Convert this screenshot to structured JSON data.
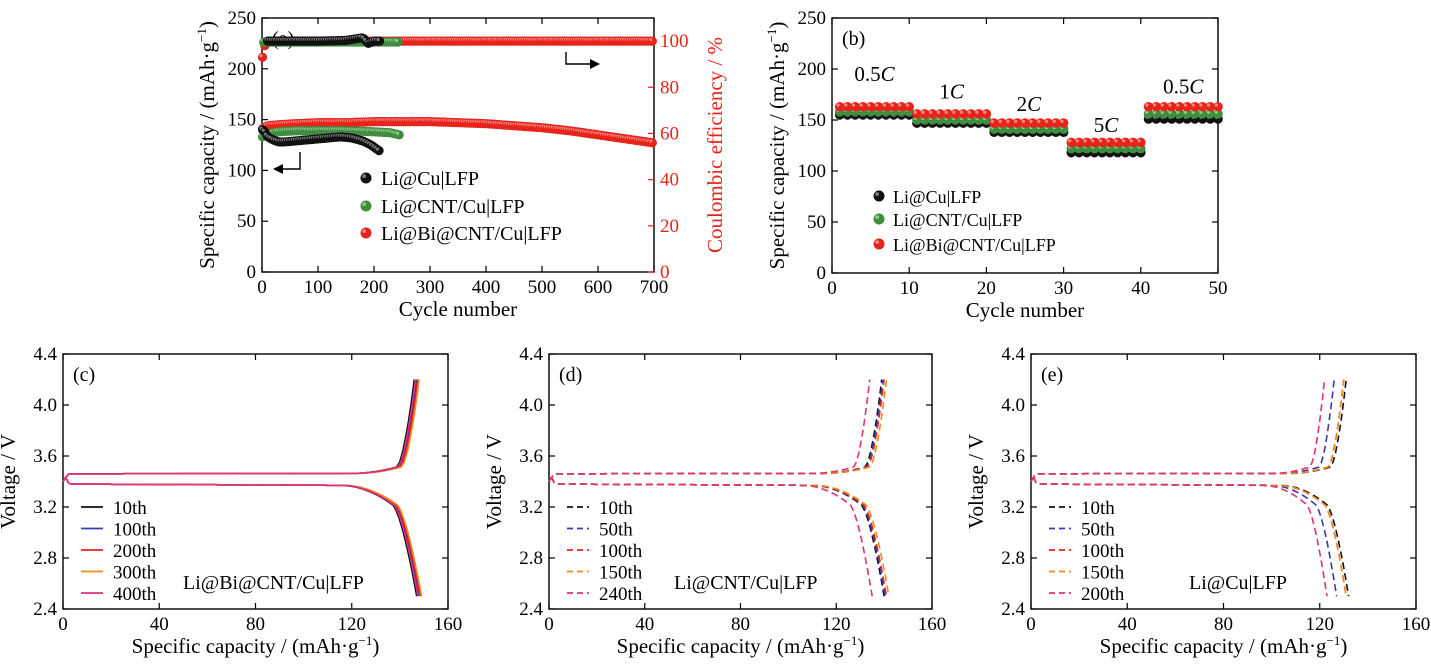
{
  "colors": {
    "black": "#111111",
    "blue": "#3a3ab4",
    "red": "#e8231a",
    "orange": "#f08a1e",
    "magenta": "#e0307a",
    "green": "#3e8e3e",
    "ce_red": "#e8231a",
    "dark_green": "#2e6f2e"
  },
  "chart_data": [
    {
      "id": "a",
      "type": "scatter",
      "panel_label": "(a)",
      "xlabel": "Cycle number",
      "ylabel": "Specific capacity / (mAh·g⁻¹)",
      "y2label": "Coulombic efficiency / %",
      "xlim": [
        0,
        700
      ],
      "ylim": [
        0,
        250
      ],
      "y2lim": [
        0,
        110
      ],
      "xticks": [
        "0",
        "100",
        "200",
        "300",
        "400",
        "500",
        "600",
        "700"
      ],
      "yticks": [
        "0",
        "50",
        "100",
        "150",
        "200",
        "250"
      ],
      "y2ticks": [
        "0",
        "20",
        "40",
        "60",
        "80",
        "100"
      ],
      "legend": [
        "Li@Cu|LFP",
        "Li@CNT/Cu|LFP",
        "Li@Bi@CNT/Cu|LFP"
      ],
      "series": [
        {
          "name": "Li@Cu|LFP",
          "color": "black",
          "axis": "left",
          "points": [
            [
              1,
              140
            ],
            [
              5,
              138
            ],
            [
              10,
              133
            ],
            [
              20,
              130
            ],
            [
              30,
              128
            ],
            [
              40,
              128
            ],
            [
              60,
              129
            ],
            [
              80,
              130
            ],
            [
              100,
              131
            ],
            [
              120,
              132
            ],
            [
              140,
              133
            ],
            [
              160,
              132
            ],
            [
              180,
              129
            ],
            [
              195,
              125
            ],
            [
              205,
              121
            ],
            [
              210,
              119
            ]
          ]
        },
        {
          "name": "Li@CNT/Cu|LFP",
          "color": "green",
          "axis": "left",
          "points": [
            [
              1,
              133
            ],
            [
              10,
              136
            ],
            [
              30,
              138
            ],
            [
              60,
              139
            ],
            [
              100,
              139
            ],
            [
              150,
              139
            ],
            [
              200,
              138
            ],
            [
              230,
              137
            ],
            [
              245,
              135
            ]
          ]
        },
        {
          "name": "Li@Bi@CNT/Cu|LFP",
          "color": "red",
          "axis": "left",
          "points": [
            [
              1,
              141
            ],
            [
              10,
              144
            ],
            [
              30,
              145
            ],
            [
              60,
              146
            ],
            [
              100,
              147
            ],
            [
              150,
              147
            ],
            [
              200,
              148
            ],
            [
              250,
              148
            ],
            [
              300,
              148
            ],
            [
              350,
              147
            ],
            [
              400,
              146
            ],
            [
              450,
              144
            ],
            [
              500,
              142
            ],
            [
              550,
              139
            ],
            [
              600,
              135
            ],
            [
              650,
              131
            ],
            [
              700,
              127
            ]
          ]
        },
        {
          "name": "Li@Cu|LFP CE",
          "color": "black",
          "axis": "right",
          "points": [
            [
              10,
              100
            ],
            [
              50,
              100
            ],
            [
              100,
              100
            ],
            [
              150,
              100.3
            ],
            [
              180,
              101.5
            ],
            [
              190,
              99
            ],
            [
              200,
              100
            ],
            [
              210,
              100
            ]
          ]
        },
        {
          "name": "Li@CNT/Cu|LFP CE",
          "color": "green",
          "axis": "right",
          "points": [
            [
              3,
              99.5
            ],
            [
              50,
              99.6
            ],
            [
              100,
              99.6
            ],
            [
              150,
              99.6
            ],
            [
              200,
              99.6
            ],
            [
              245,
              99.6
            ]
          ]
        },
        {
          "name": "Li@Bi@CNT/Cu|LFP CE",
          "color": "ce_red",
          "axis": "right",
          "points": [
            [
              1,
              93
            ],
            [
              5,
              98
            ],
            [
              10,
              100
            ],
            [
              100,
              100
            ],
            [
              200,
              100
            ],
            [
              300,
              100
            ],
            [
              400,
              100
            ],
            [
              500,
              100
            ],
            [
              600,
              100
            ],
            [
              690,
              100
            ],
            [
              700,
              100
            ]
          ]
        }
      ]
    },
    {
      "id": "b",
      "type": "scatter",
      "panel_label": "(b)",
      "xlabel": "Cycle number",
      "ylabel": "Specific capacity / (mAh·g⁻¹)",
      "xlim": [
        0,
        50
      ],
      "ylim": [
        0,
        250
      ],
      "xticks": [
        "0",
        "10",
        "20",
        "30",
        "40",
        "50"
      ],
      "yticks": [
        "0",
        "50",
        "100",
        "150",
        "200",
        "250"
      ],
      "legend": [
        "Li@Cu|LFP",
        "Li@CNT/Cu|LFP",
        "Li@Bi@CNT/Cu|LFP"
      ],
      "rate_labels": [
        {
          "num": "0.5",
          "unit": "C",
          "x": 5.5,
          "y": 188
        },
        {
          "num": "1",
          "unit": "C",
          "x": 15.5,
          "y": 171
        },
        {
          "num": "2",
          "unit": "C",
          "x": 25.5,
          "y": 159
        },
        {
          "num": "5",
          "unit": "C",
          "x": 35.5,
          "y": 138
        },
        {
          "num": "0.5",
          "unit": "C",
          "x": 45.5,
          "y": 176
        }
      ],
      "segments": [
        {
          "name": "Li@Cu|LFP",
          "color": "black",
          "levels": [
            155,
            147,
            138,
            118,
            151
          ]
        },
        {
          "name": "Li@CNT/Cu|LFP",
          "color": "green",
          "levels": [
            158,
            150,
            141,
            122,
            156
          ]
        },
        {
          "name": "Li@Bi@CNT/Cu|LFP",
          "color": "red",
          "levels": [
            163,
            156,
            147,
            128,
            163
          ]
        }
      ]
    },
    {
      "id": "c",
      "type": "line",
      "panel_label": "(c)",
      "xlabel": "Specific capacity / (mAh·g⁻¹)",
      "ylabel": "Voltage / V",
      "xlim": [
        0,
        160
      ],
      "ylim": [
        2.4,
        4.4
      ],
      "xticks": [
        "0",
        "40",
        "80",
        "120",
        "160"
      ],
      "yticks": [
        "2.4",
        "2.8",
        "3.2",
        "3.6",
        "4.0",
        "4.4"
      ],
      "dashed": false,
      "annotation": "Li@Bi@CNT/Cu|LFP",
      "series": [
        {
          "name": "10th",
          "color": "black",
          "capacity": 146
        },
        {
          "name": "100th",
          "color": "blue",
          "capacity": 147
        },
        {
          "name": "200th",
          "color": "red",
          "capacity": 147.5
        },
        {
          "name": "300th",
          "color": "orange",
          "capacity": 148
        },
        {
          "name": "400th",
          "color": "magenta",
          "capacity": 146.5
        }
      ]
    },
    {
      "id": "d",
      "type": "line",
      "panel_label": "(d)",
      "xlabel": "Specific capacity / (mAh·g⁻¹)",
      "ylabel": "Voltage / V",
      "xlim": [
        0,
        160
      ],
      "ylim": [
        2.4,
        4.4
      ],
      "xticks": [
        "0",
        "40",
        "80",
        "120",
        "160"
      ],
      "yticks": [
        "2.4",
        "2.8",
        "3.2",
        "3.6",
        "4.0",
        "4.4"
      ],
      "dashed": true,
      "annotation": "Li@CNT/Cu|LFP",
      "series": [
        {
          "name": "10th",
          "color": "black",
          "capacity": 139
        },
        {
          "name": "50th",
          "color": "blue",
          "capacity": 139.5
        },
        {
          "name": "100th",
          "color": "red",
          "capacity": 140
        },
        {
          "name": "150th",
          "color": "orange",
          "capacity": 141
        },
        {
          "name": "240th",
          "color": "magenta",
          "capacity": 134
        }
      ]
    },
    {
      "id": "e",
      "type": "line",
      "panel_label": "(e)",
      "xlabel": "Specific capacity / (mAh·g⁻¹)",
      "ylabel": "Voltage / V",
      "xlim": [
        0,
        160
      ],
      "ylim": [
        2.4,
        4.4
      ],
      "xticks": [
        "0",
        "40",
        "80",
        "120",
        "160"
      ],
      "yticks": [
        "2.4",
        "2.8",
        "3.2",
        "3.6",
        "4.0",
        "4.4"
      ],
      "dashed": true,
      "annotation": "Li@Cu|LFP",
      "series": [
        {
          "name": "10th",
          "color": "black",
          "capacity": 131
        },
        {
          "name": "50th",
          "color": "blue",
          "capacity": 126
        },
        {
          "name": "100th",
          "color": "red",
          "capacity": 130
        },
        {
          "name": "150th",
          "color": "orange",
          "capacity": 130
        },
        {
          "name": "200th",
          "color": "magenta",
          "capacity": 122
        }
      ]
    }
  ]
}
